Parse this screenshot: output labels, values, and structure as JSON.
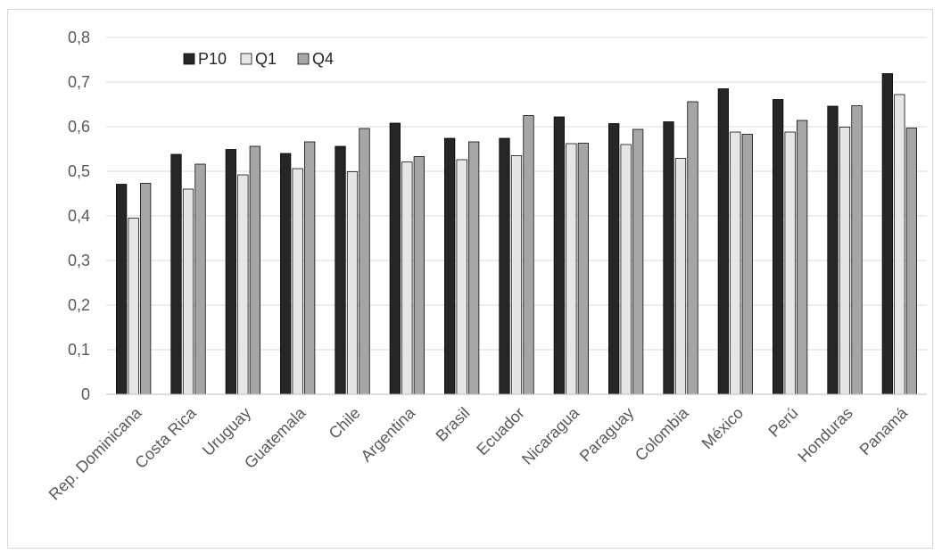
{
  "chart_data": {
    "type": "bar",
    "title": "",
    "xlabel": "",
    "ylabel": "",
    "ylim": [
      0,
      0.8
    ],
    "yticks": [
      "0",
      "0,1",
      "0,2",
      "0,3",
      "0,4",
      "0,5",
      "0,6",
      "0,7",
      "0,8"
    ],
    "grid": true,
    "legend_position": "top-left",
    "categories": [
      "Rep. Dominicana",
      "Costa Rica",
      "Uruguay",
      "Guatemala",
      "Chile",
      "Argentina",
      "Brasil",
      "Ecuador",
      "Nicaragua",
      "Paraguay",
      "Colombia",
      "México",
      "Perú",
      "Honduras",
      "Panamá"
    ],
    "series": [
      {
        "name": "P10",
        "color": "#262626",
        "values": [
          0.471,
          0.538,
          0.549,
          0.54,
          0.556,
          0.608,
          0.574,
          0.574,
          0.622,
          0.607,
          0.611,
          0.685,
          0.661,
          0.646,
          0.719
        ]
      },
      {
        "name": "Q1",
        "color": "#e6e6e6",
        "values": [
          0.395,
          0.46,
          0.492,
          0.506,
          0.499,
          0.521,
          0.526,
          0.535,
          0.562,
          0.56,
          0.529,
          0.588,
          0.588,
          0.599,
          0.672
        ]
      },
      {
        "name": "Q4",
        "color": "#a6a6a6",
        "values": [
          0.473,
          0.516,
          0.556,
          0.566,
          0.596,
          0.533,
          0.566,
          0.625,
          0.563,
          0.594,
          0.656,
          0.583,
          0.614,
          0.647,
          0.597
        ]
      }
    ]
  }
}
